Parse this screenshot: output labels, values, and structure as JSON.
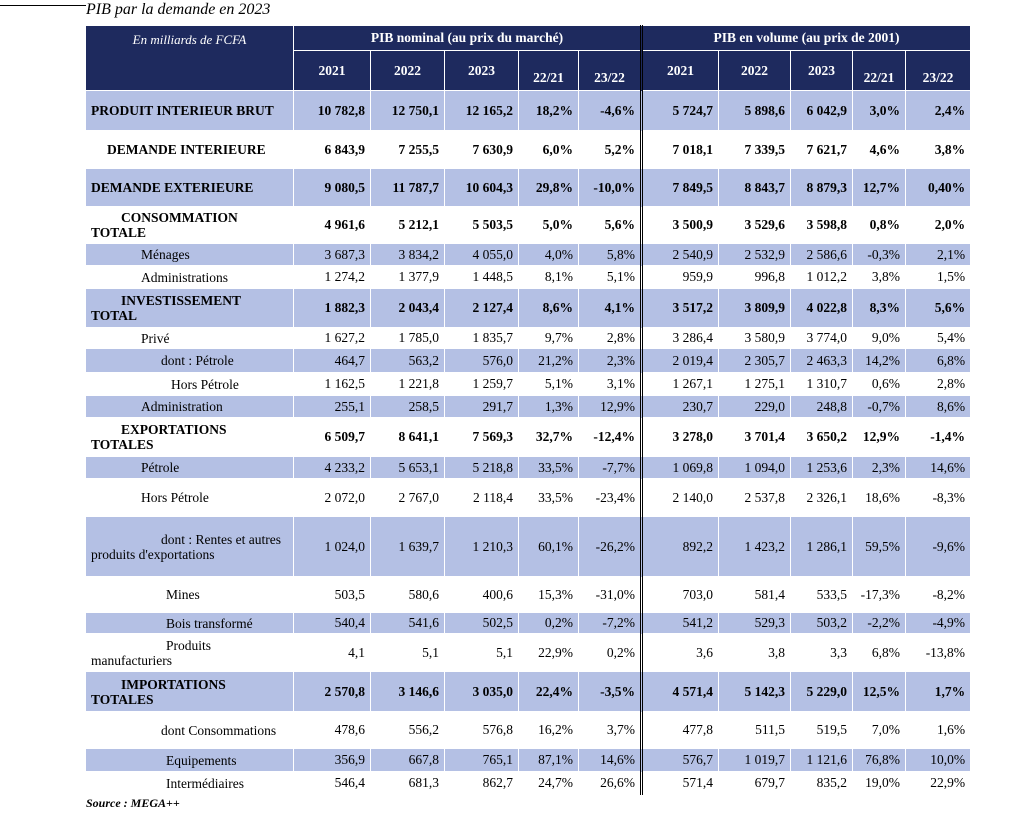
{
  "header": {
    "title": "PIB par la demande en 2023"
  },
  "table": {
    "corner": "En milliards de FCFA",
    "groups": [
      "PIB nominal (au prix du marché)",
      "PIB en volume (au prix de 2001)"
    ],
    "columns": [
      "2021",
      "2022",
      "2023",
      "22/21",
      "23/22",
      "2021",
      "2022",
      "2023",
      "22/21",
      "23/22"
    ],
    "rows": [
      {
        "label": "PRODUIT INTERIEUR BRUT",
        "values": [
          "10 782,8",
          "12 750,1",
          "12 165,2",
          "18,2%",
          "-4,6%",
          "5 724,7",
          "5 898,6",
          "6 042,9",
          "3,0%",
          "2,4%"
        ]
      },
      {
        "label": "DEMANDE INTERIEURE",
        "values": [
          "6 843,9",
          "7 255,5",
          "7 630,9",
          "6,0%",
          "5,2%",
          "7 018,1",
          "7 339,5",
          "7 621,7",
          "4,6%",
          "3,8%"
        ]
      },
      {
        "label": "DEMANDE EXTERIEURE",
        "values": [
          "9 080,5",
          "11 787,7",
          "10 604,3",
          "29,8%",
          "-10,0%",
          "7 849,5",
          "8 843,7",
          "8 879,3",
          "12,7%",
          "0,40%"
        ]
      },
      {
        "label": "CONSOMMATION TOTALE",
        "values": [
          "4 961,6",
          "5 212,1",
          "5 503,5",
          "5,0%",
          "5,6%",
          "3 500,9",
          "3 529,6",
          "3 598,8",
          "0,8%",
          "2,0%"
        ]
      },
      {
        "label": "Ménages",
        "values": [
          "3 687,3",
          "3 834,2",
          "4 055,0",
          "4,0%",
          "5,8%",
          "2 540,9",
          "2 532,9",
          "2 586,6",
          "-0,3%",
          "2,1%"
        ]
      },
      {
        "label": "Administrations",
        "values": [
          "1 274,2",
          "1 377,9",
          "1 448,5",
          "8,1%",
          "5,1%",
          "959,9",
          "996,8",
          "1 012,2",
          "3,8%",
          "1,5%"
        ]
      },
      {
        "label": "INVESTISSEMENT TOTAL",
        "values": [
          "1 882,3",
          "2 043,4",
          "2 127,4",
          "8,6%",
          "4,1%",
          "3 517,2",
          "3 809,9",
          "4 022,8",
          "8,3%",
          "5,6%"
        ]
      },
      {
        "label": "Privé",
        "values": [
          "1 627,2",
          "1 785,0",
          "1 835,7",
          "9,7%",
          "2,8%",
          "3 286,4",
          "3 580,9",
          "3 774,0",
          "9,0%",
          "5,4%"
        ]
      },
      {
        "label": "dont : Pétrole",
        "values": [
          "464,7",
          "563,2",
          "576,0",
          "21,2%",
          "2,3%",
          "2 019,4",
          "2 305,7",
          "2 463,3",
          "14,2%",
          "6,8%"
        ]
      },
      {
        "label": "Hors Pétrole",
        "values": [
          "1 162,5",
          "1 221,8",
          "1 259,7",
          "5,1%",
          "3,1%",
          "1 267,1",
          "1 275,1",
          "1 310,7",
          "0,6%",
          "2,8%"
        ]
      },
      {
        "label": "Administration",
        "values": [
          "255,1",
          "258,5",
          "291,7",
          "1,3%",
          "12,9%",
          "230,7",
          "229,0",
          "248,8",
          "-0,7%",
          "8,6%"
        ]
      },
      {
        "label": "EXPORTATIONS TOTALES",
        "values": [
          "6 509,7",
          "8 641,1",
          "7 569,3",
          "32,7%",
          "-12,4%",
          "3 278,0",
          "3 701,4",
          "3 650,2",
          "12,9%",
          "-1,4%"
        ]
      },
      {
        "label": "Pétrole",
        "values": [
          "4 233,2",
          "5 653,1",
          "5 218,8",
          "33,5%",
          "-7,7%",
          "1 069,8",
          "1 094,0",
          "1 253,6",
          "2,3%",
          "14,6%"
        ]
      },
      {
        "label": "Hors Pétrole",
        "values": [
          "2 072,0",
          "2 767,0",
          "2 118,4",
          "33,5%",
          "-23,4%",
          "2 140,0",
          "2 537,8",
          "2 326,1",
          "18,6%",
          "-8,3%"
        ]
      },
      {
        "label": "dont : Rentes et autres produits d'exportations",
        "values": [
          "1 024,0",
          "1 639,7",
          "1 210,3",
          "60,1%",
          "-26,2%",
          "892,2",
          "1 423,2",
          "1 286,1",
          "59,5%",
          "-9,6%"
        ]
      },
      {
        "label": "Mines",
        "values": [
          "503,5",
          "580,6",
          "400,6",
          "15,3%",
          "-31,0%",
          "703,0",
          "581,4",
          "533,5",
          "-17,3%",
          "-8,2%"
        ]
      },
      {
        "label": "Bois transformé",
        "values": [
          "540,4",
          "541,6",
          "502,5",
          "0,2%",
          "-7,2%",
          "541,2",
          "529,3",
          "503,2",
          "-2,2%",
          "-4,9%"
        ]
      },
      {
        "label": "Produits manufacturiers",
        "values": [
          "4,1",
          "5,1",
          "5,1",
          "22,9%",
          "0,2%",
          "3,6",
          "3,8",
          "3,3",
          "6,8%",
          "-13,8%"
        ]
      },
      {
        "label": "IMPORTATIONS TOTALES",
        "values": [
          "2 570,8",
          "3 146,6",
          "3 035,0",
          "22,4%",
          "-3,5%",
          "4 571,4",
          "5 142,3",
          "5 229,0",
          "12,5%",
          "1,7%"
        ]
      },
      {
        "label": "dont Consommations",
        "values": [
          "478,6",
          "556,2",
          "576,8",
          "16,2%",
          "3,7%",
          "477,8",
          "511,5",
          "519,5",
          "7,0%",
          "1,6%"
        ]
      },
      {
        "label": "Equipements",
        "values": [
          "356,9",
          "667,8",
          "765,1",
          "87,1%",
          "14,6%",
          "576,7",
          "1 019,7",
          "1 121,6",
          "76,8%",
          "10,0%"
        ]
      },
      {
        "label": "Intermédiaires",
        "values": [
          "546,4",
          "681,3",
          "862,7",
          "24,7%",
          "26,6%",
          "571,4",
          "679,7",
          "835,2",
          "19,0%",
          "22,9%"
        ]
      }
    ]
  },
  "footer": {
    "source": "Source : MEGA++"
  }
}
